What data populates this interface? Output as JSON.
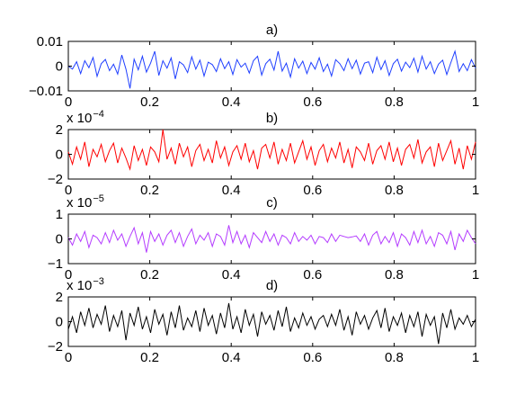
{
  "chart_data": [
    {
      "type": "line",
      "title": "a)",
      "color": "#1f3fff",
      "xlim": [
        0,
        1
      ],
      "ylim": [
        -0.01,
        0.01
      ],
      "yticks": [
        "0.01",
        "0",
        "−0.01"
      ],
      "ytick_values": [
        0.01,
        0,
        -0.01
      ],
      "exponent": "",
      "xticks": [
        "0",
        "0.2",
        "0.4",
        "0.6",
        "0.8",
        "1"
      ],
      "xtick_values": [
        0,
        0.2,
        0.4,
        0.6,
        0.8,
        1
      ],
      "y": [
        0.0,
        -0.0012,
        0.0018,
        -0.003,
        0.0022,
        -0.0006,
        0.0035,
        -0.0041,
        0.001,
        0.0027,
        -0.0018,
        0.0008,
        -0.0032,
        0.0045,
        -0.0012,
        -0.009,
        0.0028,
        -0.0015,
        0.004,
        -0.0024,
        0.0012,
        0.006,
        -0.0038,
        0.0022,
        -0.0008,
        0.0033,
        -0.0052,
        0.0018,
        0.0005,
        -0.0026,
        0.0038,
        -0.0012,
        0.0024,
        -0.004,
        0.0016,
        0.0006,
        -0.0022,
        0.003,
        -0.001,
        0.0018,
        -0.0034,
        0.0026,
        -0.0004,
        0.0012,
        -0.0028,
        0.0022,
        0.004,
        -0.0036,
        0.001,
        0.0028,
        -0.0016,
        0.006,
        -0.002,
        0.0012,
        -0.0044,
        0.003,
        -0.0008,
        0.002,
        -0.003,
        0.0015,
        -0.0012,
        0.0034,
        -0.0022,
        0.0008,
        -0.004,
        0.0026,
        0.001,
        -0.0018,
        0.003,
        -0.001,
        0.0024,
        -0.0032,
        0.0012,
        0.0018,
        -0.0026,
        0.0036,
        -0.0014,
        0.0022,
        -0.0038,
        0.001,
        0.0028,
        -0.002,
        0.0016,
        -0.0006,
        0.0032,
        -0.0024,
        0.004,
        -0.0012,
        0.0018,
        -0.003,
        0.0008,
        0.0024,
        -0.0034,
        0.0014,
        0.006,
        -0.0022,
        0.001,
        -0.0018,
        0.0026,
        -0.0008
      ]
    },
    {
      "type": "line",
      "title": "b)",
      "color": "#ff0000",
      "xlim": [
        0,
        1
      ],
      "ylim": [
        -2,
        2
      ],
      "yticks": [
        "2",
        "0",
        "−2"
      ],
      "ytick_values": [
        2,
        0,
        -2
      ],
      "exponent": "x 10",
      "exponent_power": "−4",
      "xticks": [
        "0",
        "0.2",
        "0.4",
        "0.6",
        "0.8",
        "1"
      ],
      "xtick_values": [
        0,
        0.2,
        0.4,
        0.6,
        0.8,
        1
      ],
      "y": [
        0.2,
        -0.8,
        0.6,
        -0.4,
        1.0,
        -1.0,
        0.4,
        -0.2,
        0.8,
        -0.6,
        0.3,
        0.9,
        -0.7,
        0.5,
        -0.3,
        -1.2,
        0.7,
        -0.5,
        0.4,
        -0.9,
        0.6,
        0.2,
        -0.6,
        2.0,
        -0.4,
        0.5,
        -0.8,
        0.9,
        -0.2,
        0.6,
        -1.0,
        0.3,
        0.8,
        -0.5,
        0.4,
        -0.7,
        1.1,
        -0.3,
        0.6,
        -0.9,
        0.2,
        0.7,
        -0.4,
        0.9,
        -0.6,
        0.3,
        -1.2,
        0.5,
        0.8,
        -0.3,
        1.0,
        -0.8,
        0.4,
        -0.5,
        0.9,
        -0.7,
        0.2,
        1.1,
        -0.4,
        0.6,
        -0.9,
        0.3,
        0.8,
        -0.6,
        0.5,
        -0.3,
        1.0,
        -0.7,
        0.4,
        -1.1,
        0.6,
        0.2,
        -0.5,
        0.9,
        -0.8,
        0.3,
        0.7,
        -0.4,
        1.0,
        -0.6,
        0.5,
        -0.9,
        0.4,
        0.8,
        -0.3,
        1.2,
        -0.7,
        0.2,
        0.6,
        -1.0,
        0.9,
        -0.5,
        0.3,
        1.1,
        -0.8,
        0.5,
        -1.2,
        0.7,
        -0.4,
        1.0
      ]
    },
    {
      "type": "line",
      "title": "c)",
      "color": "#b43cff",
      "xlim": [
        0,
        1
      ],
      "ylim": [
        -1,
        1
      ],
      "yticks": [
        "1",
        "0",
        "−1"
      ],
      "ytick_values": [
        1,
        0,
        -1
      ],
      "exponent": "x 10",
      "exponent_power": "−5",
      "xticks": [
        "0",
        "0.2",
        "0.4",
        "0.6",
        "0.8",
        "1"
      ],
      "xtick_values": [
        0,
        0.2,
        0.4,
        0.6,
        0.8,
        1
      ],
      "y": [
        0.05,
        -0.25,
        0.2,
        -0.1,
        0.3,
        -0.35,
        0.15,
        0.05,
        -0.2,
        0.25,
        -0.15,
        0.35,
        -0.05,
        0.2,
        -0.3,
        0.1,
        0.45,
        -0.2,
        0.25,
        -0.55,
        0.3,
        -0.1,
        0.2,
        -0.25,
        0.15,
        0.35,
        -0.15,
        0.25,
        -0.3,
        0.1,
        0.4,
        -0.2,
        0.15,
        -0.05,
        0.25,
        -0.3,
        0.2,
        0.1,
        -0.25,
        0.55,
        -0.15,
        0.3,
        -0.2,
        0.15,
        -0.35,
        0.25,
        0.05,
        -0.15,
        0.3,
        -0.1,
        0.2,
        -0.25,
        0.15,
        0.05,
        -0.2,
        0.25,
        -0.1,
        0.1,
        -0.05,
        0.15,
        -0.2,
        0.1,
        0.05,
        -0.15,
        0.2,
        -0.1,
        0.15,
        0.1,
        0.05,
        0.08,
        0.12,
        -0.1,
        0.2,
        -0.25,
        0.15,
        0.3,
        -0.2,
        0.1,
        -0.15,
        0.25,
        -0.3,
        0.2,
        0.05,
        -0.25,
        0.3,
        -0.15,
        0.35,
        -0.2,
        0.1,
        -0.3,
        0.25,
        0.15,
        -0.2,
        0.3,
        -0.45,
        0.2,
        -0.1,
        0.35,
        0.05,
        -0.2
      ]
    },
    {
      "type": "line",
      "title": "d)",
      "color": "#000000",
      "xlim": [
        0,
        1
      ],
      "ylim": [
        -2,
        2
      ],
      "yticks": [
        "2",
        "0",
        "−2"
      ],
      "ytick_values": [
        2,
        0,
        -2
      ],
      "exponent": "x 10",
      "exponent_power": "−3",
      "xticks": [
        "0",
        "0.2",
        "0.4",
        "0.6",
        "0.8",
        "1"
      ],
      "xtick_values": [
        0,
        0.2,
        0.4,
        0.6,
        0.8,
        1
      ],
      "y": [
        -0.6,
        0.4,
        -0.9,
        0.8,
        -0.3,
        1.1,
        -0.5,
        0.6,
        -0.2,
        1.3,
        -0.8,
        0.5,
        -0.4,
        0.9,
        -1.5,
        0.7,
        -0.3,
        1.2,
        -0.6,
        0.4,
        -0.9,
        1.0,
        -0.2,
        0.6,
        -1.1,
        0.8,
        -0.5,
        1.3,
        -0.7,
        0.3,
        -0.4,
        0.9,
        -0.8,
        1.1,
        -0.3,
        0.5,
        -1.0,
        0.7,
        -0.5,
        1.5,
        -0.6,
        0.4,
        -0.9,
        1.0,
        -0.3,
        0.6,
        -1.2,
        0.8,
        -0.2,
        0.5,
        -0.7,
        0.9,
        -0.4,
        1.2,
        -0.8,
        0.3,
        -0.5,
        0.7,
        -0.3,
        0.4,
        -0.6,
        0.2,
        0.5,
        -0.4,
        0.6,
        -0.3,
        1.0,
        -0.7,
        0.4,
        -1.1,
        0.8,
        -0.2,
        0.5,
        -0.6,
        0.3,
        0.9,
        -0.5,
        1.1,
        -0.8,
        0.4,
        -0.3,
        0.7,
        -0.9,
        0.5,
        -0.4,
        0.8,
        -1.2,
        0.6,
        -0.3,
        0.4,
        -1.8,
        0.7,
        -0.5,
        1.0,
        -0.6,
        0.3,
        -0.2,
        0.5,
        -0.4,
        0.2
      ]
    }
  ]
}
